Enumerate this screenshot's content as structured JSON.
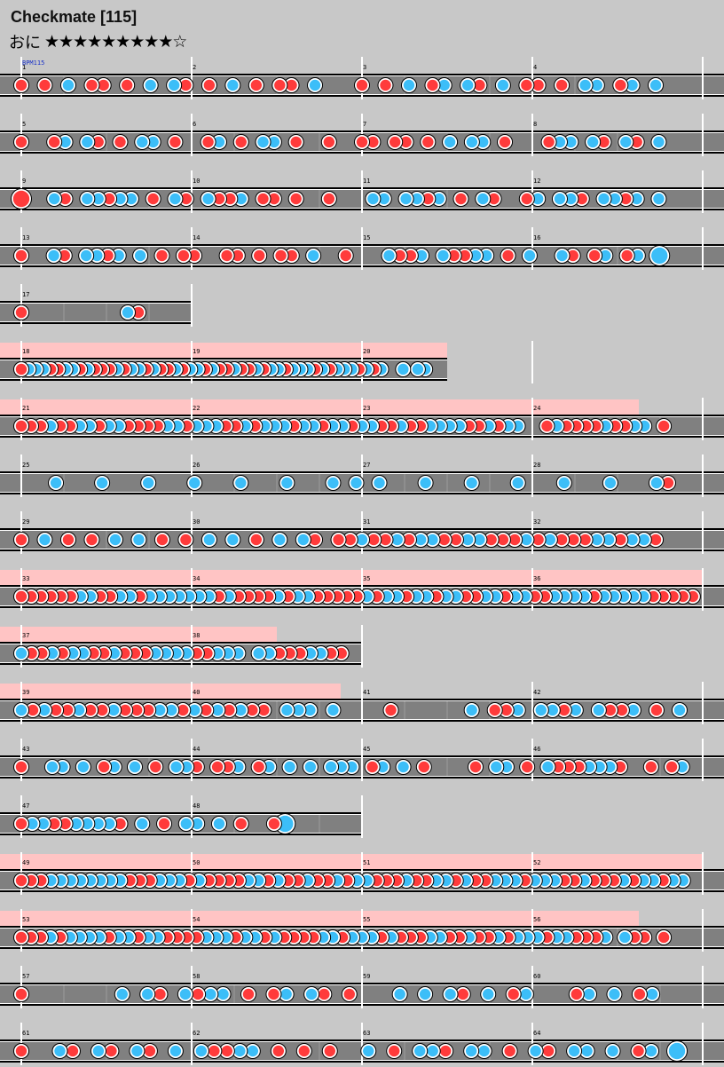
{
  "song": {
    "title": "Checkmate [115]",
    "difficulty_label": "おに",
    "stars": "★★★★★★★★★☆",
    "bpm_label": "BPM115"
  },
  "colors": {
    "don": "#ff3b3b",
    "ka": "#3cbef8",
    "lane": "#808080",
    "roll": "#ffc4c4",
    "background": "#c8c8c8"
  },
  "rows": [
    {
      "measures": [
        1,
        2,
        3,
        4
      ],
      "length": 4,
      "roll": null,
      "notes": "d.d.k.dd.d.k.kd.d.k.d.dd.k...d.d.k.dk.kd.k.dd.d.kk.dk.k..."
    },
    {
      "measures": [
        5,
        6,
        7,
        8
      ],
      "length": 4,
      "roll": null,
      "notes": "d..dk.kd.d.kk.d..dk.d.kk.d..d..dd.dd.d.k.kk.d...dkk.kd.kd.k..."
    },
    {
      "measures": [
        9,
        10,
        11,
        12
      ],
      "length": 4,
      "roll": null,
      "notes": "D..kd.kkdkk.d.kd.kddk.dd.d..d...kk.kkdk.d.kd..dk.kkd.kkdk.k..."
    },
    {
      "measures": [
        13,
        14,
        15,
        16
      ],
      "length": 4,
      "roll": null,
      "notes": "d..kd.kkdk.k.d.dd..dd.d.dd.k..d...kddk.kddkk.d.k..kd.dk.dk.K..."
    },
    {
      "measures": [
        17
      ],
      "length": 1,
      "roll": null,
      "notes": "d.........kd...."
    },
    {
      "measures": [
        18,
        19,
        20
      ],
      "length": 2.5,
      "roll": [
        0,
        2.5
      ],
      "notes": "dkkkddkkdkdddkdkkdkddkdkkdkddkddkdkkdkkkdkdkkkdkdk..k.kk.."
    },
    {
      "measures": [
        21,
        22,
        23,
        24
      ],
      "length": 4,
      "roll": [
        0,
        3.625
      ],
      "notes": "dddkddkkdkkddddkkdkkkddkdkkkdkkdkkdkkddkddkkkkddkdkk..dkddddkddkk.d..."
    },
    {
      "measures": [
        25,
        26,
        27,
        28
      ],
      "length": 4,
      "roll": null,
      "notes": "...k...k...k...k...k...k...k.k.k...k...k...k...k...k...kd.."
    },
    {
      "measures": [
        29,
        30,
        31,
        32
      ],
      "length": 4,
      "roll": null,
      "notes": "d.k.d.d.k.k.d.d.k.k.d.k.kd.ddkddkdkkddkkdddkdkdddkkdkkd..."
    },
    {
      "measures": [
        33,
        34,
        35,
        36
      ],
      "length": 4,
      "roll": [
        0,
        4
      ],
      "notes": "ddddddkkddkkdkkkkkkkdkddddkdkkdddddkdkkdkkdkkddkkdkkddkkkkdkkkkkddddd"
    },
    {
      "measures": [
        37,
        38
      ],
      "length": 2,
      "roll": [
        0,
        1.5
      ],
      "notes": "kddkdkkddkdddkkkkddkkk.kkdddkkdd."
    },
    {
      "measures": [
        39,
        40,
        41,
        42
      ],
      "length": 4,
      "roll": [
        0,
        1.875
      ],
      "notes": "kdkddkddkdddkkdkdkdkdd.kkk.k....d......k.ddk.kkdk.kddk.d.k."
    },
    {
      "measures": [
        43,
        44,
        45,
        46
      ],
      "length": 4,
      "roll": null,
      "notes": "d..kk.k.dk.k.d.kkd.ddk.dk.k.k.kkk.dk.k.d....d.kk.d.kdddkkkd..d.dk."
    },
    {
      "measures": [
        47,
        48
      ],
      "length": 2,
      "roll": null,
      "notes": "dkkddkkkkd.k.d.kk.k.d..dK......"
    },
    {
      "measures": [
        49,
        50,
        51,
        52
      ],
      "length": 4,
      "roll": [
        0,
        4
      ],
      "notes": "dddkkkkkkkkdddkkkdkddddkkdkddkddkdkkdddkddkkdkddkkkdkkkddkdddkdkkdkk."
    },
    {
      "measures": [
        53,
        54,
        55,
        56
      ],
      "length": 4,
      "roll": [
        0,
        3.625
      ],
      "notes": "dddkdkkkkdkkdkkddddkkkdkkdkddddkkdkkkdkdddkkddkddkdkkkdkkdddk.kdd.d..."
    },
    {
      "measures": [
        57,
        58,
        59,
        60
      ],
      "length": 4,
      "roll": null,
      "notes": "d.......k.kd.kdkk.d.dk.kd.d...k.k.kd.k.dk...dk.k.dk..."
    },
    {
      "measures": [
        61,
        62,
        63,
        64
      ],
      "length": 4,
      "roll": null,
      "notes": "d..kd.kd.kd.k.kddkk.d.d.d..k.d.kkd.kk.d.kd.kk.k.dk.K."
    }
  ]
}
